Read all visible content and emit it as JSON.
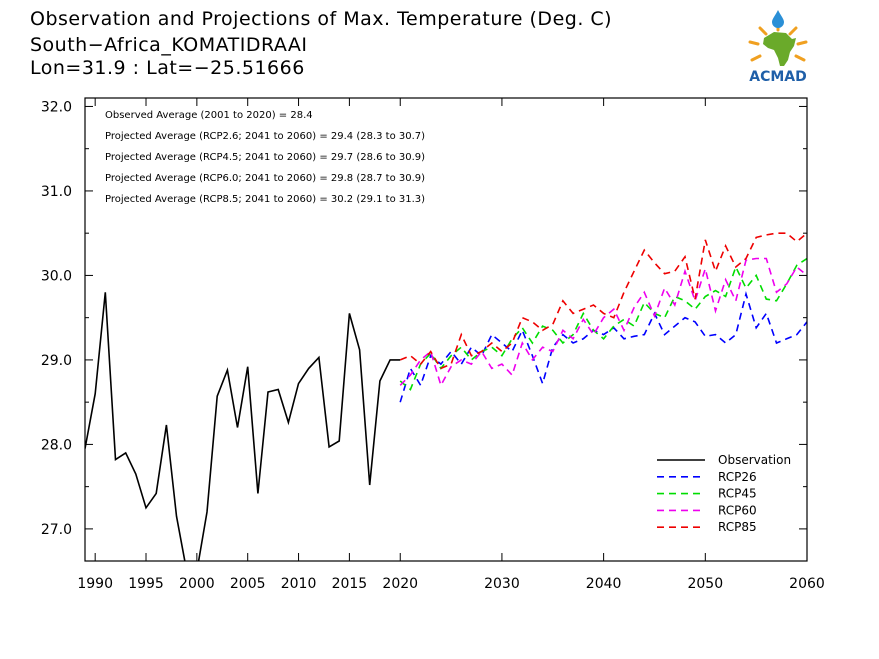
{
  "header": {
    "title": "Observation and Projections of Max. Temperature (Deg. C)",
    "location": "South−Africa_KOMATIDRAAI",
    "coords": "Lon=31.9 : Lat=−25.51666"
  },
  "logo": {
    "text": "ACMAD",
    "colors": {
      "text": "#1f5fa8",
      "africa": "#6aaa2a",
      "drop": "#2a8fd6",
      "rays": "#f0a020"
    }
  },
  "stats": [
    "Observed Average (2001 to 2020) = 28.4",
    "Projected Average (RCP2.6; 2041 to 2060) = 29.4 (28.3 to 30.7)",
    "Projected Average (RCP4.5; 2041 to 2060) = 29.7 (28.6 to 30.9)",
    "Projected Average (RCP6.0; 2041 to 2060) = 29.8 (28.7 to 30.9)",
    "Projected Average (RCP8.5; 2041 to 2060) = 30.2 (29.1 to 31.3)"
  ],
  "chart_data": {
    "type": "line",
    "xlim": [
      1989,
      2060
    ],
    "ylim": [
      26.62,
      32.1
    ],
    "xticks": [
      1990,
      1995,
      2000,
      2005,
      2010,
      2015,
      2020,
      2030,
      2040,
      2050,
      2060
    ],
    "xtick_labels": [
      "1990",
      "1995",
      "2000",
      "2005",
      "2010",
      "2015",
      "2020",
      "2030",
      "2040",
      "2050",
      "2060"
    ],
    "yticks": [
      27.0,
      28.0,
      29.0,
      30.0,
      31.0,
      32.0
    ],
    "ytick_labels": [
      "27.0",
      "28.0",
      "29.0",
      "30.0",
      "31.0",
      "32.0"
    ],
    "legend_position": "bottom-right",
    "series": [
      {
        "name": "Observation",
        "color": "#000000",
        "dash": "solid",
        "x": [
          1989,
          1990,
          1991,
          1992,
          1993,
          1994,
          1995,
          1996,
          1997,
          1998,
          1999,
          2000,
          2001,
          2002,
          2003,
          2004,
          2005,
          2006,
          2007,
          2008,
          2009,
          2010,
          2011,
          2012,
          2013,
          2014,
          2015,
          2016,
          2017,
          2018,
          2019,
          2020
        ],
        "y": [
          27.95,
          28.6,
          29.8,
          27.82,
          27.9,
          27.65,
          27.25,
          27.42,
          28.23,
          27.15,
          26.5,
          26.5,
          27.2,
          28.57,
          28.88,
          28.2,
          28.92,
          27.42,
          28.62,
          28.65,
          28.26,
          28.72,
          28.9,
          29.03,
          27.97,
          28.04,
          29.55,
          29.12,
          27.52,
          28.75,
          29.0,
          29.0
        ]
      },
      {
        "name": "RCP26",
        "color": "#0000ff",
        "dash": "dashed",
        "x": [
          2020,
          2021,
          2022,
          2023,
          2024,
          2025,
          2026,
          2027,
          2028,
          2029,
          2030,
          2031,
          2032,
          2033,
          2034,
          2035,
          2036,
          2037,
          2038,
          2039,
          2040,
          2041,
          2042,
          2043,
          2044,
          2045,
          2046,
          2047,
          2048,
          2049,
          2050,
          2051,
          2052,
          2053,
          2054,
          2055,
          2056,
          2057,
          2058,
          2059,
          2060
        ],
        "y": [
          28.5,
          28.9,
          28.7,
          29.05,
          28.95,
          29.1,
          28.95,
          29.15,
          29.05,
          29.3,
          29.2,
          29.1,
          29.35,
          29.05,
          28.72,
          29.15,
          29.3,
          29.2,
          29.25,
          29.35,
          29.3,
          29.38,
          29.25,
          29.28,
          29.3,
          29.55,
          29.3,
          29.4,
          29.5,
          29.45,
          29.28,
          29.3,
          29.2,
          29.3,
          29.78,
          29.38,
          29.55,
          29.2,
          29.25,
          29.3,
          29.45
        ]
      },
      {
        "name": "RCP45",
        "color": "#00dd00",
        "dash": "dashed",
        "x": [
          2020,
          2021,
          2022,
          2023,
          2024,
          2025,
          2026,
          2027,
          2028,
          2029,
          2030,
          2031,
          2032,
          2033,
          2034,
          2035,
          2036,
          2037,
          2038,
          2039,
          2040,
          2041,
          2042,
          2043,
          2044,
          2045,
          2046,
          2047,
          2048,
          2049,
          2050,
          2051,
          2052,
          2053,
          2054,
          2055,
          2056,
          2057,
          2058,
          2059,
          2060
        ],
        "y": [
          28.75,
          28.65,
          28.95,
          29.08,
          28.9,
          29.05,
          29.15,
          29.0,
          29.1,
          29.15,
          29.05,
          29.25,
          29.38,
          29.2,
          29.4,
          29.35,
          29.2,
          29.3,
          29.55,
          29.35,
          29.25,
          29.4,
          29.48,
          29.4,
          29.68,
          29.55,
          29.5,
          29.75,
          29.7,
          29.6,
          29.75,
          29.82,
          29.75,
          30.1,
          29.85,
          30.0,
          29.72,
          29.7,
          29.9,
          30.12,
          30.2
        ]
      },
      {
        "name": "RCP60",
        "color": "#ee00ee",
        "dash": "dashed",
        "x": [
          2020,
          2021,
          2022,
          2023,
          2024,
          2025,
          2026,
          2027,
          2028,
          2029,
          2030,
          2031,
          2032,
          2033,
          2034,
          2035,
          2036,
          2037,
          2038,
          2039,
          2040,
          2041,
          2042,
          2043,
          2044,
          2045,
          2046,
          2047,
          2048,
          2049,
          2050,
          2051,
          2052,
          2053,
          2054,
          2055,
          2056,
          2057,
          2058,
          2059,
          2060
        ],
        "y": [
          28.7,
          28.82,
          29.0,
          29.1,
          28.7,
          28.92,
          29.0,
          28.95,
          29.1,
          28.9,
          28.95,
          28.82,
          29.2,
          29.0,
          29.15,
          29.1,
          29.35,
          29.25,
          29.48,
          29.3,
          29.5,
          29.6,
          29.35,
          29.62,
          29.8,
          29.52,
          29.85,
          29.65,
          30.05,
          29.7,
          30.08,
          29.58,
          29.95,
          29.7,
          30.18,
          30.2,
          30.2,
          29.8,
          29.9,
          30.1,
          30.0
        ]
      },
      {
        "name": "RCP85",
        "color": "#ee0000",
        "dash": "dashed",
        "x": [
          2020,
          2021,
          2022,
          2023,
          2024,
          2025,
          2026,
          2027,
          2028,
          2029,
          2030,
          2031,
          2032,
          2033,
          2034,
          2035,
          2036,
          2037,
          2038,
          2039,
          2040,
          2041,
          2042,
          2043,
          2044,
          2045,
          2046,
          2047,
          2048,
          2049,
          2050,
          2051,
          2052,
          2053,
          2054,
          2055,
          2056,
          2057,
          2058,
          2059,
          2060
        ],
        "y": [
          29.0,
          29.05,
          28.95,
          29.1,
          28.9,
          28.95,
          29.3,
          29.05,
          29.1,
          29.2,
          29.1,
          29.2,
          29.5,
          29.45,
          29.35,
          29.42,
          29.7,
          29.55,
          29.6,
          29.65,
          29.55,
          29.5,
          29.8,
          30.05,
          30.3,
          30.15,
          30.02,
          30.05,
          30.22,
          29.72,
          30.42,
          30.05,
          30.35,
          30.1,
          30.2,
          30.45,
          30.48,
          30.5,
          30.5,
          30.4,
          30.5
        ]
      }
    ]
  }
}
